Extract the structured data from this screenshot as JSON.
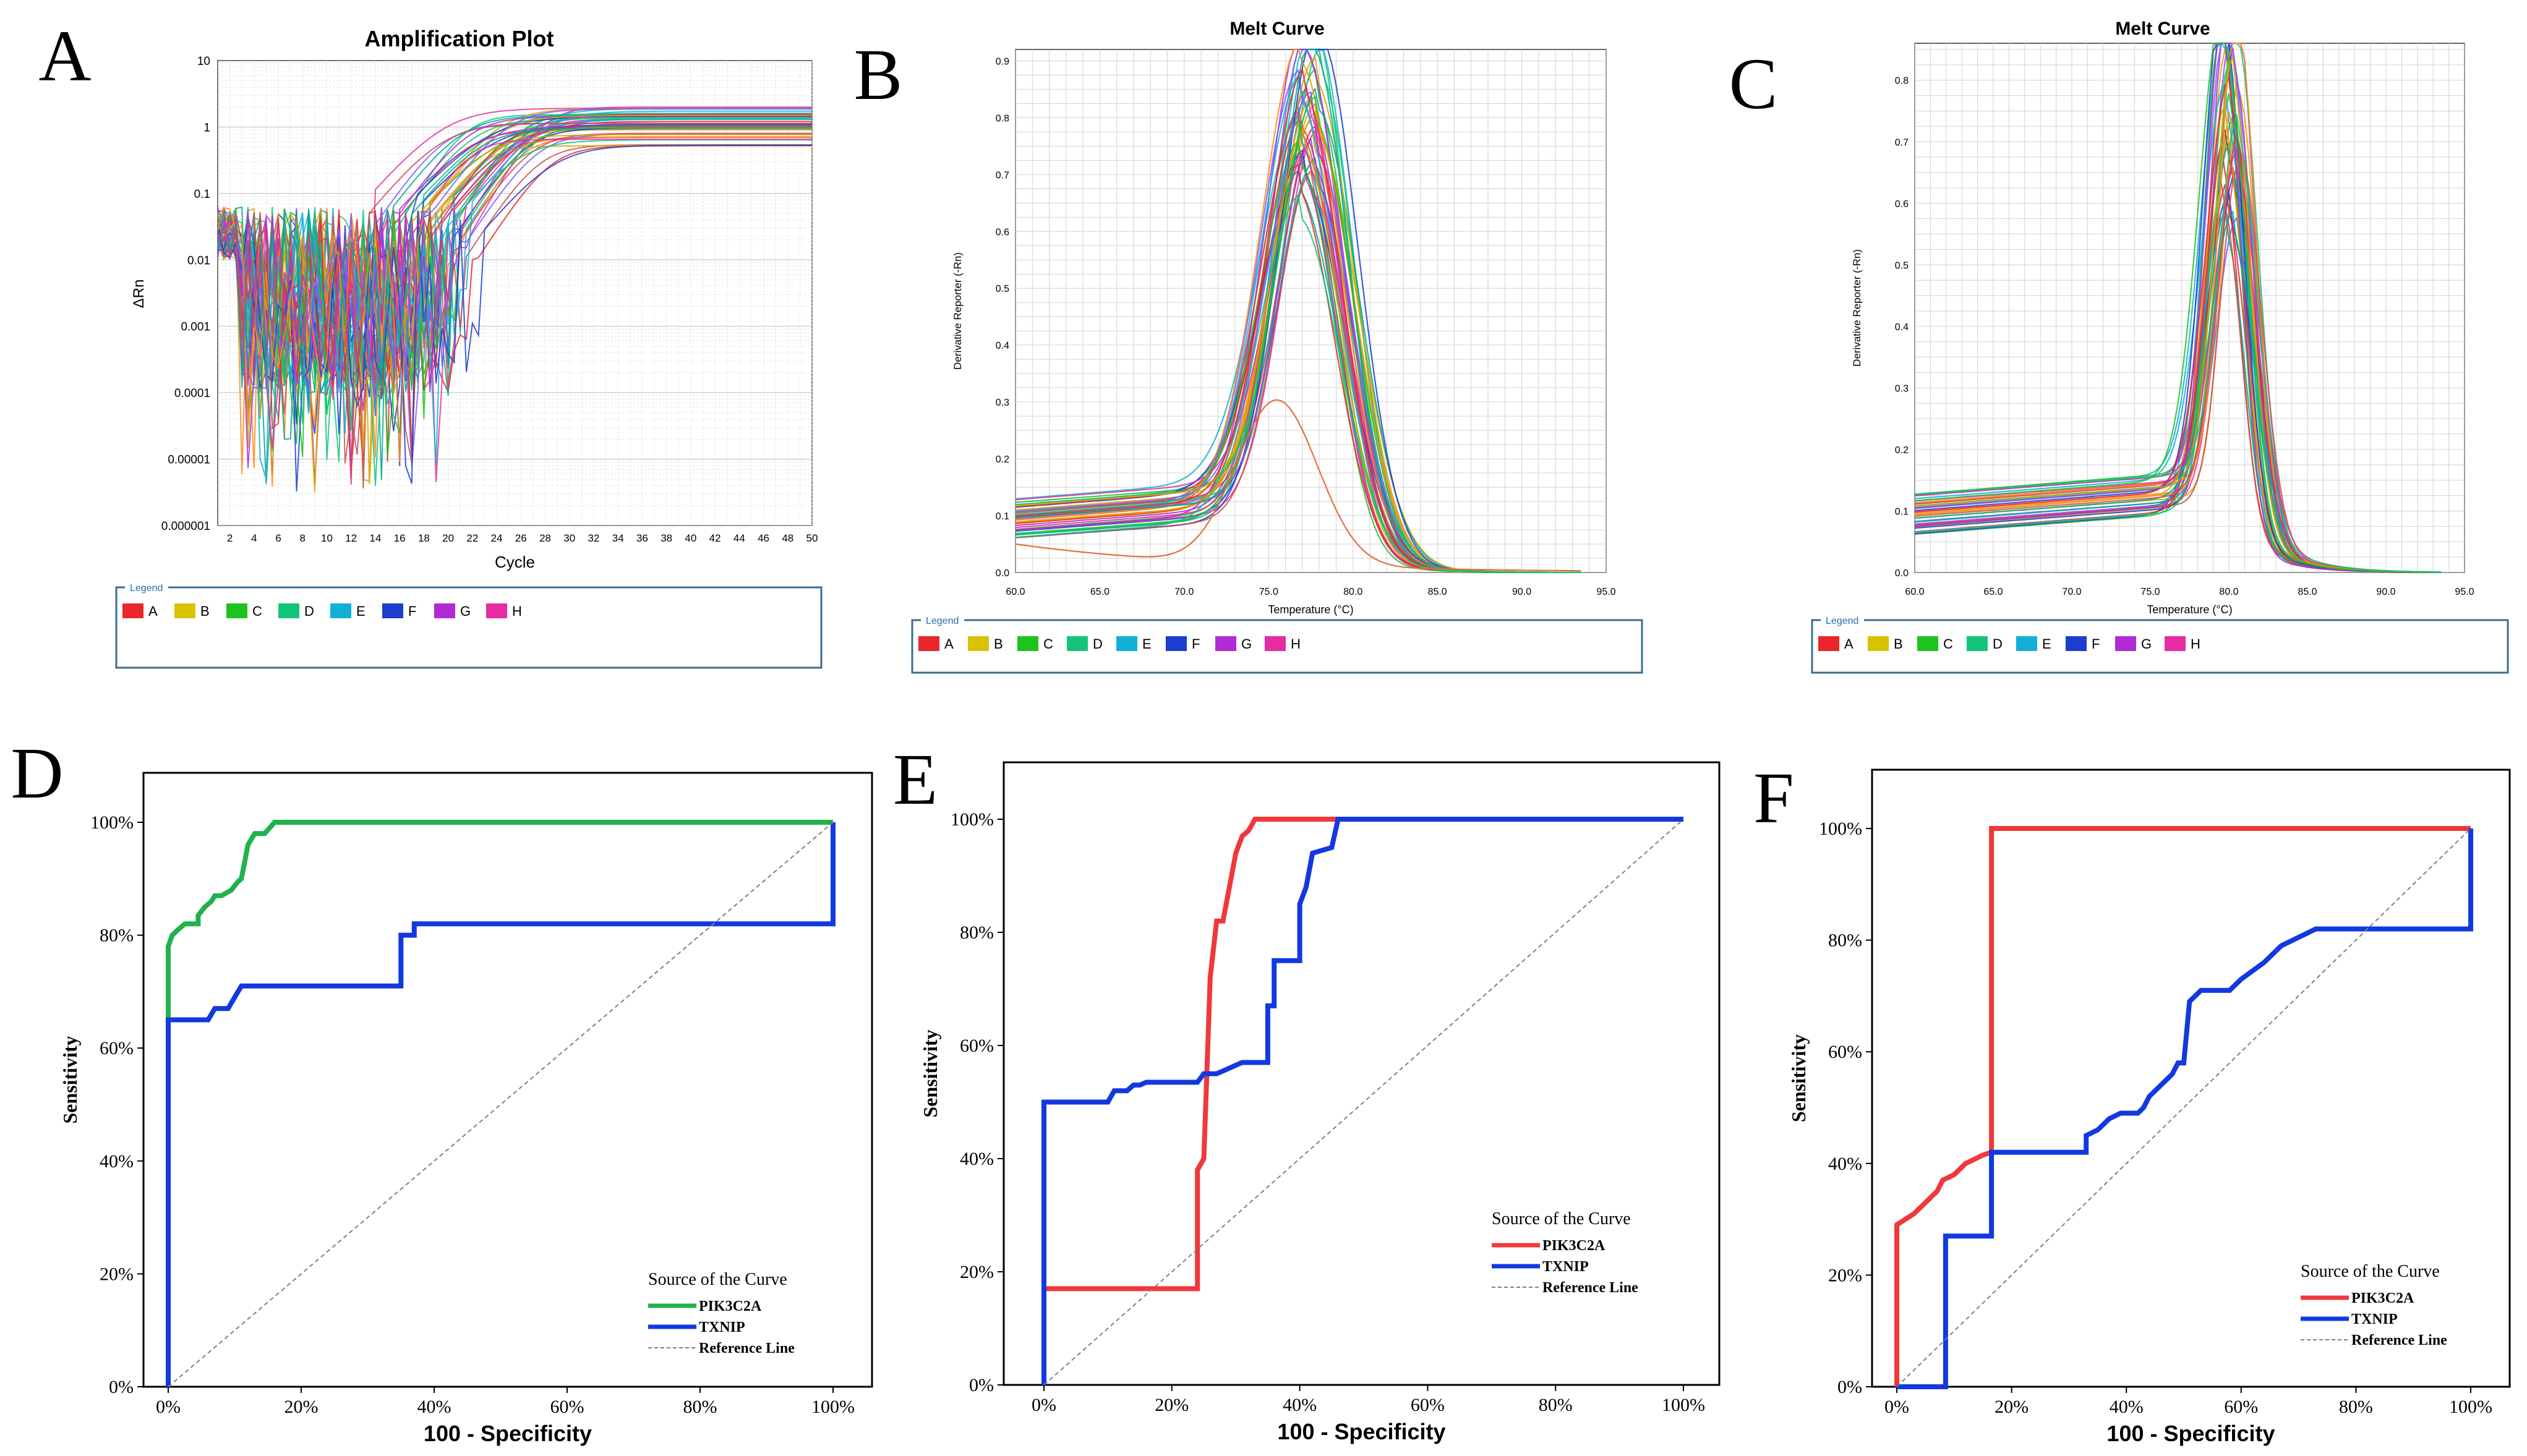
{
  "panel_letters": [
    "A",
    "B",
    "C",
    "D",
    "E",
    "F"
  ],
  "legend_codes": [
    "A",
    "B",
    "C",
    "D",
    "E",
    "F",
    "G",
    "H"
  ],
  "legend_title": "Legend",
  "colors": {
    "legend": [
      "#e8262b",
      "#d9c200",
      "#1ec41e",
      "#14c47a",
      "#12b0d6",
      "#1b3ecf",
      "#b02bd6",
      "#e62ba3"
    ],
    "plate_palette": [
      "#e8262b",
      "#d9a400",
      "#1ec41e",
      "#14c47a",
      "#12b0d6",
      "#1b3ecf",
      "#b02bd6",
      "#e62ba3",
      "#ff8c1a",
      "#7a5cff",
      "#00a88f",
      "#c94f4f"
    ],
    "pik3c2a_d": "#21b24b",
    "pik3c2a": "#f0383c",
    "txnip": "#1239e0",
    "reference": "#808080"
  },
  "chart_data": [
    {
      "id": "A",
      "type": "line",
      "title": "Amplification Plot",
      "xlabel": "Cycle",
      "ylabel": "ΔRn",
      "yscale": "log",
      "xlim": [
        1,
        50
      ],
      "ylim": [
        1e-06,
        10
      ],
      "x_ticks": [
        "2",
        "4",
        "6",
        "8",
        "10",
        "12",
        "14",
        "16",
        "18",
        "20",
        "22",
        "24",
        "26",
        "28",
        "30",
        "32",
        "34",
        "36",
        "38",
        "40",
        "42",
        "44",
        "46",
        "48",
        "50"
      ],
      "y_ticks": [
        "10",
        "1",
        "0.1",
        "0.01",
        "0.001",
        "0.0001",
        "0.00001",
        "0.000001"
      ],
      "series_count": 48,
      "approx_threshold_cycle_range": [
        16,
        26
      ],
      "plateau_range": [
        0.5,
        2.0
      ]
    },
    {
      "id": "B",
      "type": "line",
      "title": "Melt Curve",
      "xlabel": "Temperature (°C)",
      "ylabel": "Derivative Reporter (-Rn)",
      "xlim": [
        60,
        95
      ],
      "ylim": [
        0,
        0.92
      ],
      "x_ticks": [
        "60.0",
        "65.0",
        "70.0",
        "75.0",
        "80.0",
        "85.0",
        "90.0",
        "95.0"
      ],
      "y_ticks": [
        "0.0",
        "0.1",
        "0.2",
        "0.3",
        "0.4",
        "0.5",
        "0.6",
        "0.7",
        "0.8",
        "0.9"
      ],
      "series_count": 40,
      "approx_peak_temp": 77.5,
      "approx_peak_range": [
        0.55,
        0.91
      ],
      "secondary_curve_peak": {
        "temp": 75.5,
        "value": 0.29
      }
    },
    {
      "id": "C",
      "type": "line",
      "title": "Melt Curve",
      "xlabel": "Temperature (°C)",
      "ylabel": "Derivative Reporter (-Rn)",
      "xlim": [
        60,
        95
      ],
      "ylim": [
        0,
        0.86
      ],
      "x_ticks": [
        "60.0",
        "65.0",
        "70.0",
        "75.0",
        "80.0",
        "85.0",
        "90.0",
        "95.0"
      ],
      "y_ticks": [
        "0.0",
        "0.1",
        "0.2",
        "0.3",
        "0.4",
        "0.5",
        "0.6",
        "0.7",
        "0.8"
      ],
      "series_count": 40,
      "approx_peak_temp": 80.2,
      "approx_peak_range": [
        0.45,
        0.86
      ]
    },
    {
      "id": "D",
      "type": "line",
      "xlabel": "100 - Specificity",
      "ylabel": "Sensitivity",
      "xlim": [
        0,
        100
      ],
      "ylim": [
        0,
        100
      ],
      "x_ticks": [
        "0%",
        "20%",
        "40%",
        "60%",
        "80%",
        "100%"
      ],
      "y_ticks": [
        "0%",
        "20%",
        "40%",
        "60%",
        "80%",
        "100%"
      ],
      "legend_title": "Source of the Curve",
      "series": [
        {
          "name": "PIK3C2A",
          "color_key": "pik3c2a_d",
          "x": [
            0,
            0,
            0.6,
            1.5,
            2.5,
            3.5,
            4.5,
            4.5,
            5.5,
            6.5,
            7,
            8,
            9.5,
            10.5,
            11,
            12,
            13,
            14.5,
            16,
            100,
            100
          ],
          "y": [
            0,
            78,
            80,
            81,
            82,
            82,
            82,
            83.5,
            85,
            86,
            87,
            87,
            88,
            89.5,
            90,
            96,
            98,
            98,
            100,
            100,
            100
          ]
        },
        {
          "name": "TXNIP",
          "color_key": "txnip",
          "x": [
            0,
            0,
            6,
            7,
            9,
            10,
            11,
            35,
            35,
            37,
            37,
            100,
            100
          ],
          "y": [
            0,
            65,
            65,
            67,
            67,
            69,
            71,
            71,
            80,
            80,
            82,
            82,
            100
          ]
        },
        {
          "name": "Reference Line",
          "color_key": "reference",
          "x": [
            0,
            100
          ],
          "y": [
            0,
            100
          ]
        }
      ]
    },
    {
      "id": "E",
      "type": "line",
      "xlabel": "100 - Specificity",
      "ylabel": "Sensitivity",
      "xlim": [
        0,
        100
      ],
      "ylim": [
        0,
        100
      ],
      "x_ticks": [
        "0%",
        "20%",
        "40%",
        "60%",
        "80%",
        "100%"
      ],
      "y_ticks": [
        "0%",
        "20%",
        "40%",
        "60%",
        "80%",
        "100%"
      ],
      "legend_title": "Source of the Curve",
      "series": [
        {
          "name": "PIK3C2A",
          "color_key": "pik3c2a",
          "x": [
            0,
            0,
            24,
            24,
            25,
            25.5,
            26,
            27,
            28,
            29,
            30,
            31,
            32,
            33,
            48,
            100
          ],
          "y": [
            17,
            17,
            17,
            38,
            40,
            56,
            72,
            82,
            82,
            88,
            94,
            97,
            98,
            100,
            100,
            100
          ]
        },
        {
          "name": "TXNIP",
          "color_key": "txnip",
          "x": [
            0,
            0,
            10,
            11,
            13,
            14,
            15,
            16,
            24,
            25,
            27,
            29,
            30,
            31,
            35,
            35,
            36,
            36,
            38,
            40,
            40,
            41,
            42,
            45,
            46,
            47,
            100
          ],
          "y": [
            0,
            50,
            50,
            52,
            52,
            53,
            53,
            53.5,
            53.5,
            55,
            55,
            56,
            56.5,
            57,
            57,
            67,
            67,
            75,
            75,
            75,
            85,
            88,
            94,
            95,
            100,
            100,
            100
          ]
        },
        {
          "name": "Reference Line",
          "color_key": "reference",
          "x": [
            0,
            100
          ],
          "y": [
            0,
            100
          ]
        }
      ]
    },
    {
      "id": "F",
      "type": "line",
      "xlabel": "100 - Specificity",
      "ylabel": "Sensitivity",
      "xlim": [
        0,
        100
      ],
      "ylim": [
        0,
        100
      ],
      "x_ticks": [
        "0%",
        "20%",
        "40%",
        "60%",
        "80%",
        "100%"
      ],
      "y_ticks": [
        "0%",
        "20%",
        "40%",
        "60%",
        "80%",
        "100%"
      ],
      "legend_title": "Source of the Curve",
      "series": [
        {
          "name": "PIK3C2A",
          "color_key": "pik3c2a",
          "x": [
            0,
            0,
            3,
            5,
            7,
            8,
            10,
            12,
            15,
            16.5,
            16.5,
            100,
            100
          ],
          "y": [
            0,
            29,
            31,
            33,
            35,
            37,
            38,
            40,
            41.5,
            42,
            100,
            100,
            100
          ]
        },
        {
          "name": "TXNIP",
          "color_key": "txnip",
          "x": [
            0,
            8.5,
            8.5,
            16.5,
            16.5,
            33,
            33,
            35,
            37,
            39,
            42,
            43,
            44,
            46,
            48,
            49,
            50,
            51,
            53,
            58,
            60,
            64,
            67,
            69,
            71,
            73,
            97,
            100,
            100
          ],
          "y": [
            0,
            0,
            27,
            27,
            42,
            42,
            45,
            46,
            48,
            49,
            49,
            50,
            52,
            54,
            56,
            58,
            58,
            69,
            71,
            71,
            73,
            76,
            79,
            80,
            81,
            82,
            82,
            82,
            100
          ]
        },
        {
          "name": "Reference Line",
          "color_key": "reference",
          "x": [
            0,
            100
          ],
          "y": [
            0,
            100
          ]
        }
      ]
    }
  ]
}
